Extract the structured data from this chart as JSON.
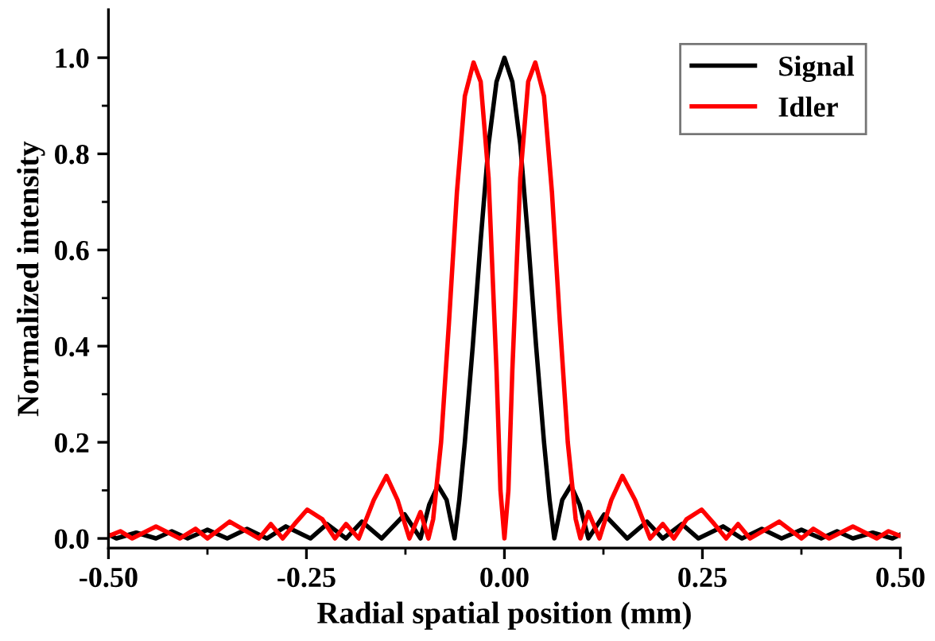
{
  "chart_data": {
    "type": "line",
    "xlabel": "Radial spatial position (mm)",
    "ylabel": "Normalized intensity",
    "xlim": [
      -0.5,
      0.5
    ],
    "ylim": [
      -0.02,
      1.1
    ],
    "xticks": [
      {
        "value": -0.5,
        "label": "-0.50"
      },
      {
        "value": -0.375,
        "label": null
      },
      {
        "value": -0.25,
        "label": "-0.25"
      },
      {
        "value": -0.125,
        "label": null
      },
      {
        "value": 0,
        "label": "0.00"
      },
      {
        "value": 0.125,
        "label": null
      },
      {
        "value": 0.25,
        "label": "0.25"
      },
      {
        "value": 0.375,
        "label": null
      },
      {
        "value": 0.5,
        "label": "0.50"
      }
    ],
    "yticks": [
      {
        "value": 0,
        "label": "0.0"
      },
      {
        "value": 0.1,
        "label": null
      },
      {
        "value": 0.2,
        "label": "0.2"
      },
      {
        "value": 0.3,
        "label": null
      },
      {
        "value": 0.4,
        "label": "0.4"
      },
      {
        "value": 0.5,
        "label": null
      },
      {
        "value": 0.6,
        "label": "0.6"
      },
      {
        "value": 0.7,
        "label": null
      },
      {
        "value": 0.8,
        "label": "0.8"
      },
      {
        "value": 0.9,
        "label": null
      },
      {
        "value": 1.0,
        "label": "1.0"
      }
    ],
    "legend": "top right",
    "grid": false,
    "marker": "none",
    "line_style": "solid",
    "series": [
      {
        "name": "Signal",
        "color": "#000000",
        "x": [
          -0.5,
          -0.49,
          -0.465,
          -0.44,
          -0.42,
          -0.4,
          -0.375,
          -0.35,
          -0.325,
          -0.3,
          -0.276,
          -0.245,
          -0.224,
          -0.2,
          -0.18,
          -0.155,
          -0.126,
          -0.106,
          -0.095,
          -0.084,
          -0.073,
          -0.063,
          -0.057,
          -0.05,
          -0.04,
          -0.03,
          -0.02,
          -0.01,
          0,
          0.01,
          0.02,
          0.03,
          0.04,
          0.05,
          0.057,
          0.063,
          0.073,
          0.084,
          0.095,
          0.106,
          0.126,
          0.155,
          0.18,
          0.2,
          0.224,
          0.245,
          0.276,
          0.3,
          0.325,
          0.35,
          0.375,
          0.4,
          0.42,
          0.44,
          0.465,
          0.49,
          0.5
        ],
        "values": [
          0.008,
          0.0,
          0.012,
          0.0,
          0.015,
          0.0,
          0.018,
          0.0,
          0.02,
          0.0,
          0.025,
          0.0,
          0.03,
          0.0,
          0.035,
          0.0,
          0.05,
          0.0,
          0.07,
          0.11,
          0.08,
          0.0,
          0.08,
          0.2,
          0.4,
          0.62,
          0.82,
          0.95,
          1.0,
          0.95,
          0.82,
          0.62,
          0.4,
          0.2,
          0.08,
          0.0,
          0.08,
          0.11,
          0.07,
          0.0,
          0.05,
          0.0,
          0.035,
          0.0,
          0.03,
          0.0,
          0.025,
          0.0,
          0.02,
          0.0,
          0.018,
          0.0,
          0.015,
          0.0,
          0.012,
          0.0,
          0.008
        ]
      },
      {
        "name": "Idler",
        "color": "#ff0000",
        "x": [
          -0.5,
          -0.485,
          -0.47,
          -0.44,
          -0.41,
          -0.39,
          -0.375,
          -0.347,
          -0.31,
          -0.295,
          -0.28,
          -0.265,
          -0.249,
          -0.23,
          -0.214,
          -0.2,
          -0.184,
          -0.165,
          -0.149,
          -0.135,
          -0.12,
          -0.106,
          -0.096,
          -0.09,
          -0.08,
          -0.07,
          -0.06,
          -0.05,
          -0.039,
          -0.03,
          -0.02,
          -0.01,
          -0.005,
          0,
          0.005,
          0.01,
          0.02,
          0.03,
          0.039,
          0.05,
          0.06,
          0.07,
          0.08,
          0.09,
          0.096,
          0.106,
          0.12,
          0.135,
          0.149,
          0.165,
          0.184,
          0.2,
          0.214,
          0.23,
          0.249,
          0.265,
          0.28,
          0.295,
          0.31,
          0.347,
          0.375,
          0.39,
          0.41,
          0.44,
          0.47,
          0.485,
          0.5
        ],
        "values": [
          0.005,
          0.015,
          0.0,
          0.025,
          0.0,
          0.02,
          0.0,
          0.035,
          0.0,
          0.03,
          0.0,
          0.03,
          0.06,
          0.04,
          0.0,
          0.03,
          0.0,
          0.08,
          0.13,
          0.08,
          0.0,
          0.055,
          0.0,
          0.04,
          0.2,
          0.45,
          0.72,
          0.92,
          0.99,
          0.95,
          0.75,
          0.35,
          0.1,
          0.0,
          0.1,
          0.35,
          0.75,
          0.95,
          0.99,
          0.92,
          0.72,
          0.45,
          0.2,
          0.04,
          0.0,
          0.055,
          0.0,
          0.08,
          0.13,
          0.08,
          0.0,
          0.03,
          0.0,
          0.04,
          0.06,
          0.03,
          0.0,
          0.03,
          0.0,
          0.035,
          0.0,
          0.02,
          0.0,
          0.025,
          0.0,
          0.015,
          0.005
        ]
      }
    ]
  }
}
